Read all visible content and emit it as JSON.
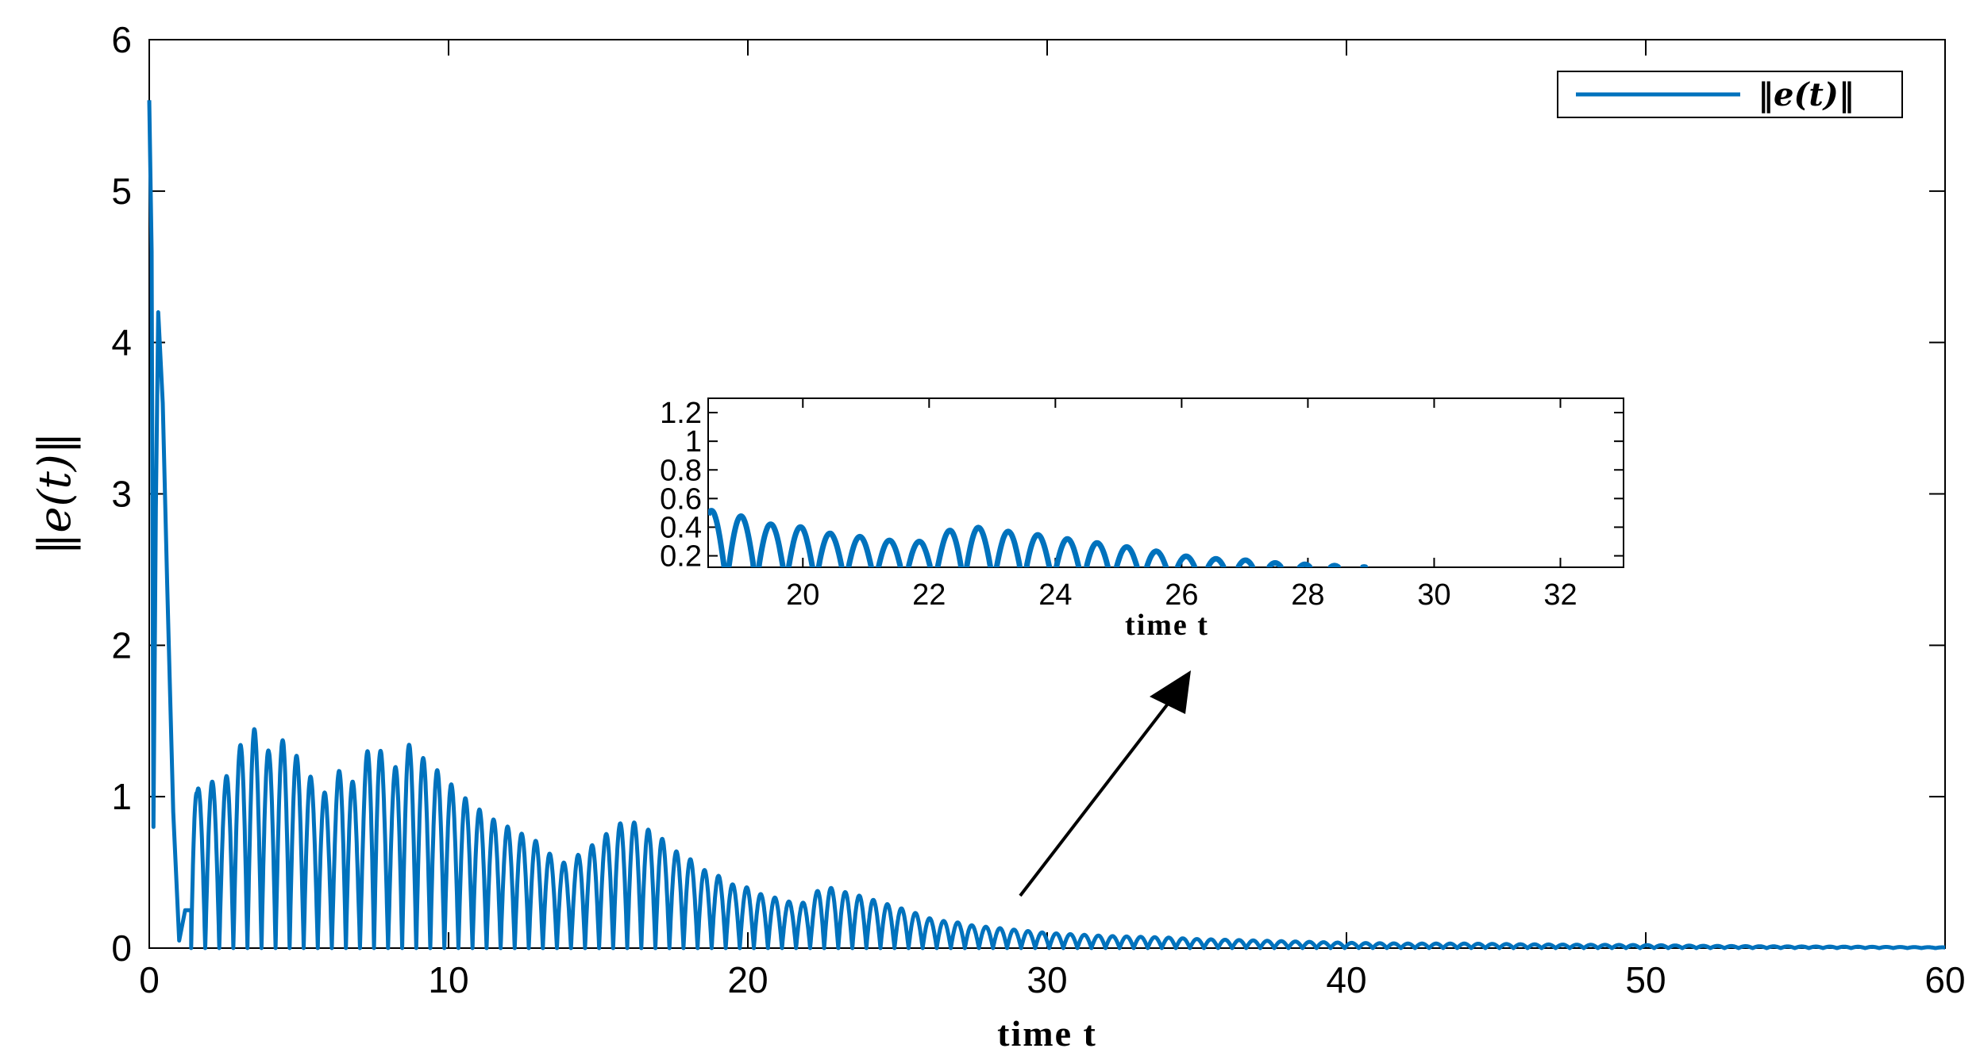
{
  "chart_data": [
    {
      "type": "line",
      "ylabel": "‖e(t)‖",
      "xlabel": "time t",
      "xlim": [
        0,
        60
      ],
      "ylim": [
        0,
        6
      ],
      "xticks": [
        "0",
        "10",
        "20",
        "30",
        "40",
        "50",
        "60"
      ],
      "yticks": [
        "0",
        "1",
        "2",
        "3",
        "4",
        "5",
        "6"
      ],
      "legend": {
        "position": "top-right",
        "label": "‖e(t)‖"
      },
      "grid": false,
      "color": "#0072BD",
      "series": [
        {
          "name": "‖e(t)‖",
          "envelope_peaks": {
            "t": [
              0.3,
              1.6,
              2.0,
              2.5,
              3.0,
              3.5,
              4.0,
              4.5,
              5.0,
              5.5,
              6.0,
              6.5,
              7.0,
              7.5,
              8.0,
              8.5,
              9.0,
              9.5,
              10.0,
              10.5,
              11.0,
              11.5,
              12.0,
              12.5,
              13.0,
              13.5,
              14.0,
              14.5,
              15.0,
              15.5,
              16.0,
              16.5,
              17.0,
              17.5,
              18.0,
              18.5,
              19.0,
              19.5,
              20.0,
              20.5,
              21.0,
              21.5,
              22.0,
              22.5,
              23.0,
              23.5,
              24.0,
              24.5,
              25.0,
              25.5,
              26.0,
              26.5,
              27.0,
              27.5,
              28.0,
              28.5,
              29.0,
              29.5,
              30.0,
              31.0,
              32.0,
              33.0,
              34.0,
              35.0,
              36.0,
              37.0,
              38.0,
              39.0,
              40.0,
              42.0,
              44.0,
              46.0,
              48.0,
              50.0,
              52.0,
              54.0,
              56.0,
              58.0,
              60.0
            ],
            "y": [
              4.2,
              1.05,
              1.1,
              1.1,
              1.33,
              1.45,
              1.3,
              1.38,
              1.25,
              1.1,
              1.0,
              1.25,
              1.0,
              1.53,
              1.05,
              1.38,
              1.28,
              1.2,
              1.1,
              1.0,
              0.92,
              0.85,
              0.8,
              0.75,
              0.7,
              0.6,
              0.55,
              0.65,
              0.7,
              0.8,
              0.85,
              0.8,
              0.75,
              0.65,
              0.6,
              0.52,
              0.48,
              0.42,
              0.4,
              0.35,
              0.33,
              0.3,
              0.3,
              0.42,
              0.38,
              0.36,
              0.33,
              0.3,
              0.27,
              0.24,
              0.2,
              0.18,
              0.17,
              0.15,
              0.14,
              0.13,
              0.12,
              0.11,
              0.1,
              0.09,
              0.08,
              0.075,
              0.07,
              0.06,
              0.055,
              0.05,
              0.045,
              0.04,
              0.035,
              0.03,
              0.03,
              0.025,
              0.022,
              0.02,
              0.015,
              0.012,
              0.01,
              0.008,
              0.005
            ]
          },
          "initial_value": 5.6,
          "oscillation_period": 0.47
        }
      ],
      "annotations": [
        {
          "type": "arrow",
          "from": [
            29,
            0.33
          ],
          "to": [
            35,
            1.8
          ]
        }
      ]
    },
    {
      "type": "line",
      "inset": true,
      "xlabel": "time t",
      "xlim": [
        18.5,
        33
      ],
      "ylim": [
        0.12,
        1.3
      ],
      "xticks": [
        "20",
        "22",
        "24",
        "26",
        "28",
        "30",
        "32"
      ],
      "yticks": [
        "0.2",
        "0.4",
        "0.6",
        "0.8",
        "1",
        "1.2"
      ],
      "color": "#0072BD"
    }
  ]
}
